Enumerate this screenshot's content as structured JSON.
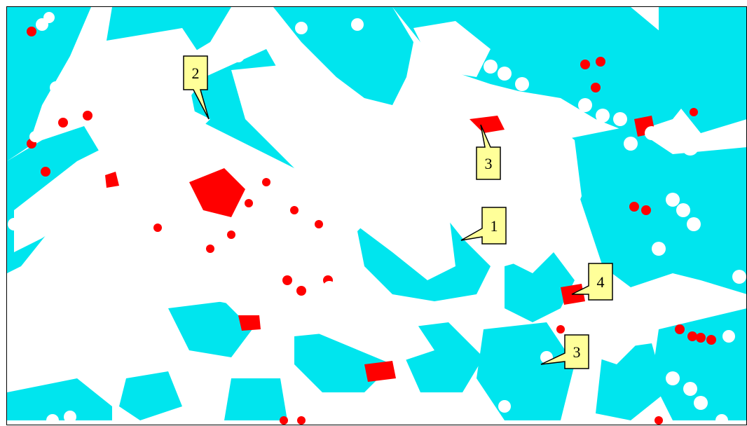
{
  "colors": {
    "background": "#ffffff",
    "water": "#00e5ee",
    "shadow_red": "#ff0000",
    "callout_fill": "#ffff99",
    "callout_stroke": "#000000"
  },
  "callouts": [
    {
      "label": "2"
    },
    {
      "label": "3"
    },
    {
      "label": "1"
    },
    {
      "label": "4"
    },
    {
      "label": "3"
    }
  ]
}
